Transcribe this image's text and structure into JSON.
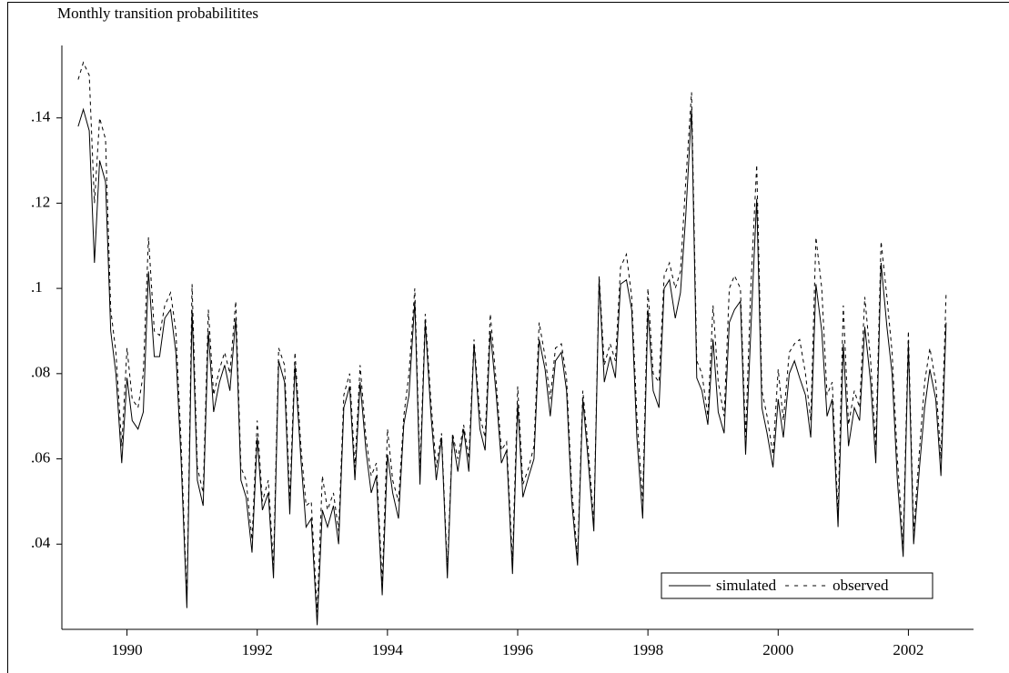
{
  "chart_data": {
    "type": "line",
    "ylabel": "Monthly transition probabilitites",
    "x": [
      1989.25,
      1989.33,
      1989.42,
      1989.5,
      1989.58,
      1989.67,
      1989.75,
      1989.83,
      1989.92,
      1990.0,
      1990.08,
      1990.17,
      1990.25,
      1990.33,
      1990.42,
      1990.5,
      1990.58,
      1990.67,
      1990.75,
      1990.83,
      1990.92,
      1991.0,
      1991.08,
      1991.17,
      1991.25,
      1991.33,
      1991.42,
      1991.5,
      1991.58,
      1991.67,
      1991.75,
      1991.83,
      1991.92,
      1992.0,
      1992.08,
      1992.17,
      1992.25,
      1992.33,
      1992.42,
      1992.5,
      1992.58,
      1992.67,
      1992.75,
      1992.83,
      1992.92,
      1993.0,
      1993.08,
      1993.17,
      1993.25,
      1993.33,
      1993.42,
      1993.5,
      1993.58,
      1993.67,
      1993.75,
      1993.83,
      1993.92,
      1994.0,
      1994.08,
      1994.17,
      1994.25,
      1994.33,
      1994.42,
      1994.5,
      1994.58,
      1994.67,
      1994.75,
      1994.83,
      1994.92,
      1995.0,
      1995.08,
      1995.17,
      1995.25,
      1995.33,
      1995.42,
      1995.5,
      1995.58,
      1995.67,
      1995.75,
      1995.83,
      1995.92,
      1996.0,
      1996.08,
      1996.17,
      1996.25,
      1996.33,
      1996.42,
      1996.5,
      1996.58,
      1996.67,
      1996.75,
      1996.83,
      1996.92,
      1997.0,
      1997.08,
      1997.17,
      1997.25,
      1997.33,
      1997.42,
      1997.5,
      1997.58,
      1997.67,
      1997.75,
      1997.83,
      1997.92,
      1998.0,
      1998.08,
      1998.17,
      1998.25,
      1998.33,
      1998.42,
      1998.5,
      1998.58,
      1998.67,
      1998.75,
      1998.83,
      1998.92,
      1999.0,
      1999.08,
      1999.17,
      1999.25,
      1999.33,
      1999.42,
      1999.5,
      1999.58,
      1999.67,
      1999.75,
      1999.83,
      1999.92,
      2000.0,
      2000.08,
      2000.17,
      2000.25,
      2000.33,
      2000.42,
      2000.5,
      2000.58,
      2000.67,
      2000.75,
      2000.83,
      2000.92,
      2001.0,
      2001.08,
      2001.17,
      2001.25,
      2001.33,
      2001.42,
      2001.5,
      2001.58,
      2001.67,
      2001.75,
      2001.83,
      2001.92,
      2002.0,
      2002.08,
      2002.17,
      2002.25,
      2002.33,
      2002.42,
      2002.5,
      2002.58
    ],
    "series": [
      {
        "name": "simulated",
        "color": "#000000",
        "dash": "solid",
        "values": [
          0.138,
          0.142,
          0.137,
          0.106,
          0.13,
          0.125,
          0.09,
          0.08,
          0.059,
          0.079,
          0.069,
          0.067,
          0.071,
          0.104,
          0.084,
          0.084,
          0.093,
          0.095,
          0.085,
          0.06,
          0.025,
          0.095,
          0.055,
          0.049,
          0.09,
          0.071,
          0.078,
          0.082,
          0.076,
          0.093,
          0.055,
          0.051,
          0.038,
          0.065,
          0.048,
          0.052,
          0.032,
          0.083,
          0.078,
          0.047,
          0.082,
          0.06,
          0.044,
          0.046,
          0.021,
          0.048,
          0.044,
          0.049,
          0.04,
          0.072,
          0.077,
          0.055,
          0.078,
          0.062,
          0.052,
          0.056,
          0.028,
          0.061,
          0.052,
          0.046,
          0.068,
          0.075,
          0.097,
          0.054,
          0.092,
          0.07,
          0.055,
          0.065,
          0.032,
          0.065,
          0.057,
          0.067,
          0.057,
          0.087,
          0.067,
          0.062,
          0.09,
          0.075,
          0.059,
          0.062,
          0.033,
          0.073,
          0.051,
          0.056,
          0.06,
          0.088,
          0.081,
          0.07,
          0.083,
          0.085,
          0.076,
          0.05,
          0.035,
          0.074,
          0.06,
          0.043,
          0.102,
          0.078,
          0.084,
          0.079,
          0.101,
          0.102,
          0.095,
          0.065,
          0.046,
          0.095,
          0.076,
          0.072,
          0.1,
          0.102,
          0.093,
          0.099,
          0.117,
          0.142,
          0.079,
          0.076,
          0.068,
          0.088,
          0.071,
          0.066,
          0.092,
          0.095,
          0.097,
          0.061,
          0.09,
          0.121,
          0.072,
          0.066,
          0.058,
          0.074,
          0.065,
          0.08,
          0.083,
          0.079,
          0.075,
          0.065,
          0.101,
          0.09,
          0.07,
          0.074,
          0.044,
          0.087,
          0.063,
          0.072,
          0.069,
          0.091,
          0.078,
          0.059,
          0.106,
          0.091,
          0.08,
          0.055,
          0.037,
          0.087,
          0.04,
          0.058,
          0.072,
          0.081,
          0.074,
          0.056,
          0.092
        ]
      },
      {
        "name": "observed",
        "color": "#000000",
        "dash": "dashed",
        "values": [
          0.149,
          0.153,
          0.15,
          0.12,
          0.14,
          0.135,
          0.095,
          0.085,
          0.063,
          0.086,
          0.074,
          0.072,
          0.08,
          0.112,
          0.09,
          0.089,
          0.096,
          0.099,
          0.09,
          0.064,
          0.027,
          0.101,
          0.058,
          0.052,
          0.095,
          0.075,
          0.081,
          0.085,
          0.08,
          0.097,
          0.058,
          0.055,
          0.041,
          0.069,
          0.05,
          0.055,
          0.035,
          0.086,
          0.082,
          0.05,
          0.085,
          0.063,
          0.049,
          0.05,
          0.024,
          0.056,
          0.048,
          0.052,
          0.043,
          0.075,
          0.08,
          0.058,
          0.082,
          0.065,
          0.056,
          0.059,
          0.031,
          0.067,
          0.055,
          0.05,
          0.07,
          0.08,
          0.1,
          0.057,
          0.094,
          0.073,
          0.058,
          0.066,
          0.034,
          0.066,
          0.06,
          0.068,
          0.06,
          0.088,
          0.07,
          0.065,
          0.094,
          0.078,
          0.062,
          0.064,
          0.036,
          0.077,
          0.054,
          0.058,
          0.063,
          0.092,
          0.084,
          0.074,
          0.086,
          0.087,
          0.079,
          0.053,
          0.037,
          0.076,
          0.063,
          0.045,
          0.103,
          0.082,
          0.087,
          0.083,
          0.105,
          0.108,
          0.098,
          0.07,
          0.05,
          0.1,
          0.08,
          0.078,
          0.103,
          0.106,
          0.1,
          0.104,
          0.125,
          0.146,
          0.083,
          0.08,
          0.07,
          0.096,
          0.078,
          0.07,
          0.1,
          0.103,
          0.1,
          0.065,
          0.1,
          0.129,
          0.076,
          0.07,
          0.061,
          0.081,
          0.069,
          0.085,
          0.087,
          0.088,
          0.08,
          0.069,
          0.112,
          0.1,
          0.075,
          0.078,
          0.047,
          0.096,
          0.068,
          0.076,
          0.072,
          0.098,
          0.083,
          0.063,
          0.111,
          0.098,
          0.085,
          0.06,
          0.04,
          0.09,
          0.043,
          0.062,
          0.078,
          0.086,
          0.078,
          0.06,
          0.099
        ]
      }
    ],
    "xlim": [
      1989,
      2003
    ],
    "xticks": [
      1990,
      1992,
      1994,
      1996,
      1998,
      2000,
      2002
    ],
    "ylim": [
      0.02,
      0.157
    ],
    "yticks": [
      {
        "value": 0.04,
        "label": ".04"
      },
      {
        "value": 0.06,
        "label": ".06"
      },
      {
        "value": 0.08,
        "label": ".08"
      },
      {
        "value": 0.1,
        "label": ".1"
      },
      {
        "value": 0.12,
        "label": ".12"
      },
      {
        "value": 0.14,
        "label": ".14"
      }
    ],
    "legend": "lower right",
    "grid": false
  }
}
